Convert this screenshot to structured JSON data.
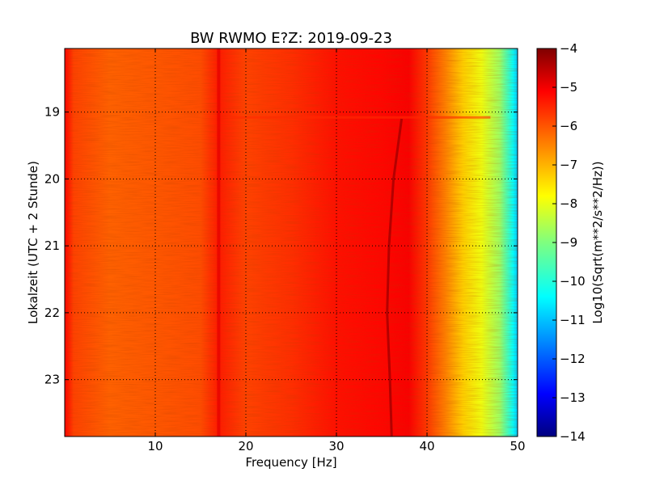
{
  "chart_data": {
    "type": "heatmap",
    "title": "BW RWMO E?Z: 2019-09-23",
    "xlabel": "Frequency [Hz]",
    "ylabel": "Lokalzeit (UTC + 2 Stunde)",
    "colorbar_label": "Log10(Sqrt(m**2/s**2/Hz))",
    "colormap": "jet",
    "grid": true,
    "xlim": [
      0,
      50
    ],
    "ylim": [
      18.05,
      23.85
    ],
    "y_inverted": true,
    "x_ticks": [
      10,
      20,
      30,
      40,
      50
    ],
    "x_tick_labels": [
      "10",
      "20",
      "30",
      "40",
      "50"
    ],
    "y_ticks": [
      19,
      20,
      21,
      22,
      23
    ],
    "y_tick_labels": [
      "19",
      "20",
      "21",
      "22",
      "23"
    ],
    "clim": [
      -14,
      -4
    ],
    "colorbar_ticks": [
      -4,
      -5,
      -6,
      -7,
      -8,
      -9,
      -10,
      -11,
      -12,
      -13,
      -14
    ],
    "colorbar_tick_labels": [
      "−4",
      "−5",
      "−6",
      "−7",
      "−8",
      "−9",
      "−10",
      "−11",
      "−12",
      "−13",
      "−14"
    ],
    "spectrum_profile": [
      {
        "freq": 0.2,
        "value": -5.4
      },
      {
        "freq": 1,
        "value": -5.9
      },
      {
        "freq": 5,
        "value": -6.2
      },
      {
        "freq": 10,
        "value": -6.1
      },
      {
        "freq": 15,
        "value": -6.0
      },
      {
        "freq": 17,
        "value": -5.5
      },
      {
        "freq": 20,
        "value": -5.9
      },
      {
        "freq": 25,
        "value": -5.7
      },
      {
        "freq": 30,
        "value": -5.4
      },
      {
        "freq": 35,
        "value": -5.3
      },
      {
        "freq": 38,
        "value": -5.2
      },
      {
        "freq": 40,
        "value": -5.8
      },
      {
        "freq": 42,
        "value": -6.5
      },
      {
        "freq": 44,
        "value": -7.3
      },
      {
        "freq": 46,
        "value": -7.9
      },
      {
        "freq": 48,
        "value": -8.7
      },
      {
        "freq": 49.5,
        "value": -10.2
      },
      {
        "freq": 50,
        "value": -10.8
      }
    ],
    "features": [
      {
        "name": "line",
        "freq": 17,
        "value": -5.0,
        "time_range": [
          18.05,
          23.85
        ]
      },
      {
        "name": "drifting line",
        "points": [
          [
            37.2,
            19.1
          ],
          [
            36.3,
            20.0
          ],
          [
            35.8,
            21.0
          ],
          [
            35.6,
            22.0
          ],
          [
            35.9,
            23.0
          ],
          [
            36.1,
            23.85
          ]
        ],
        "value": -4.4
      },
      {
        "name": "onset",
        "time": 19.08,
        "freq_range": [
          18,
          47
        ]
      }
    ]
  }
}
